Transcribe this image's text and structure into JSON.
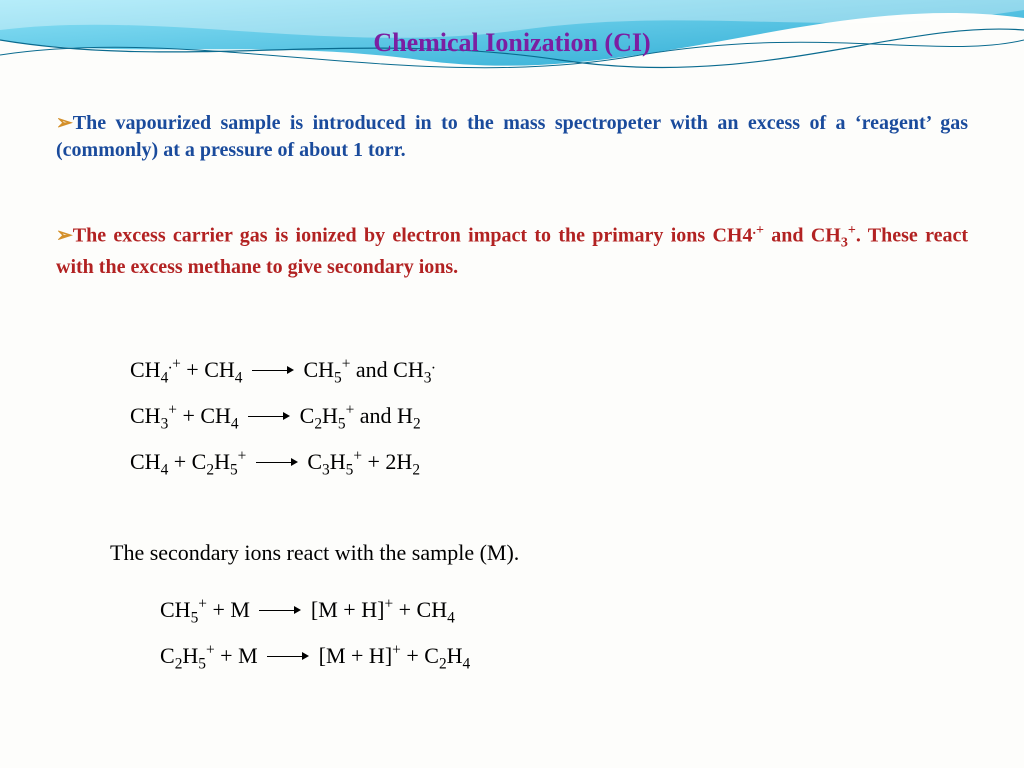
{
  "title": "Chemical Ionization (CI)",
  "para1": "The vapourized sample is introduced in to the mass spectropeter with an excess of a ‘reagent’ gas (commonly) at a pressure of about 1 torr.",
  "para2_a": "The excess carrier gas is ionized by electron impact to the primary ions  CH4",
  "para2_sup1": ".+",
  "para2_b": " and CH",
  "para2_sub1": "3",
  "para2_sup2": "+",
  "para2_c": ". These react with the excess methane to give secondary ions.",
  "caption": "The secondary ions react with the sample (M).",
  "colors": {
    "title": "#7b1fa2",
    "para1": "#1a4b9c",
    "para2": "#b22222",
    "bullet": "#d4902a",
    "wave_fill": "#4fc3e8",
    "wave_stroke": "#0a6b8f",
    "bg": "#fdfdfb"
  },
  "equations_block1": [
    {
      "lhs_html": "CH<sub>4</sub><sup>.+</sup> + CH<sub>4</sub>",
      "rhs_html": "CH<sub>5</sub><sup>+</sup> and CH<sub>3</sub><sup>.</sup>"
    },
    {
      "lhs_html": "CH<sub>3</sub><sup>+</sup> + CH<sub>4</sub>",
      "rhs_html": "C<sub>2</sub>H<sub>5</sub><sup>+</sup> and H<sub>2</sub>"
    },
    {
      "lhs_html": "CH<sub>4</sub> + C<sub>2</sub>H<sub>5</sub><sup>+</sup>",
      "rhs_html": "C<sub>3</sub>H<sub>5</sub><sup>+</sup> + 2H<sub>2</sub>"
    }
  ],
  "equations_block2": [
    {
      "lhs_html": "CH<sub>5</sub><sup>+</sup> + M",
      "rhs_html": "[M + H]<sup>+</sup> + CH<sub>4</sub>"
    },
    {
      "lhs_html": "C<sub>2</sub>H<sub>5</sub><sup>+</sup> + M",
      "rhs_html": "[M + H]<sup>+</sup> + C<sub>2</sub>H<sub>4</sub>"
    }
  ],
  "bullet_char": "➢"
}
